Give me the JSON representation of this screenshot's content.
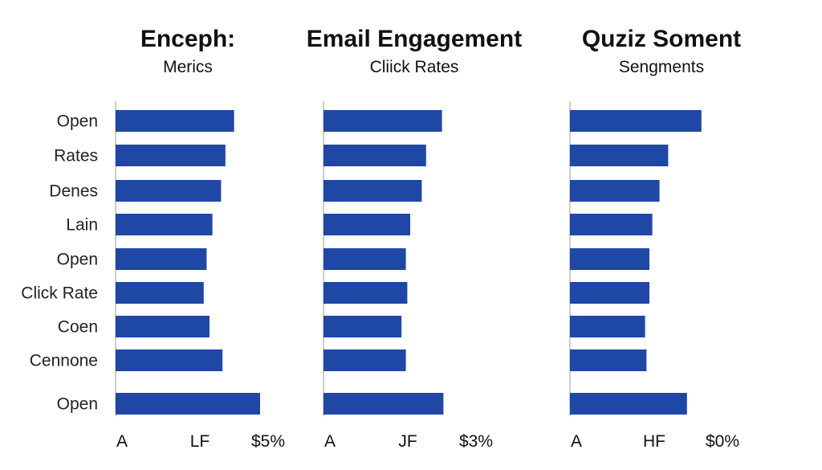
{
  "chart_data": {
    "type": "bar",
    "orientation": "horizontal",
    "categories": [
      "Open",
      "Rates",
      "Denes",
      "Lain",
      "Open",
      "Click Rate",
      "Coen",
      "Cennone",
      "Open"
    ],
    "bar_color": "#1f47a6",
    "grid": false,
    "legend": "none",
    "panels": [
      {
        "title": "Enceph:",
        "subtitle": "Merics",
        "tick_labels": [
          "A",
          "LF",
          "$5%"
        ],
        "xlim": [
          0,
          100
        ],
        "values": [
          82,
          76,
          73,
          67,
          63,
          61,
          65,
          74,
          100
        ]
      },
      {
        "title": "Email Engagement",
        "subtitle": "Cliick Rates",
        "tick_labels": [
          "A",
          "JF",
          "$3%"
        ],
        "xlim": [
          0,
          100
        ],
        "values": [
          82,
          71,
          68,
          60,
          57,
          58,
          54,
          57,
          83
        ]
      },
      {
        "title": "Quziz Soment",
        "subtitle": "Sengments",
        "tick_labels": [
          "A",
          "HF",
          "$0%"
        ],
        "xlim": [
          0,
          100
        ],
        "values": [
          91,
          68,
          62,
          57,
          55,
          55,
          52,
          53,
          81
        ]
      }
    ]
  }
}
